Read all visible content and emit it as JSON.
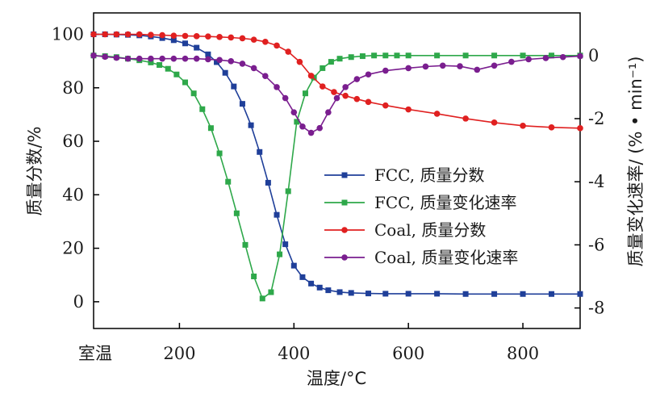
{
  "chart_data": {
    "type": "line",
    "xlabel": "温度/°C",
    "ylabel_left": "质量分数/%",
    "ylabel_right": "质量变化速率/ (% • min⁻¹)",
    "xlim": [
      50,
      900
    ],
    "ylim_left": [
      -10,
      108
    ],
    "ylim_right": [
      -8.65,
      1.35
    ],
    "x_ticks": [
      {
        "value": 50,
        "label": "室温"
      },
      {
        "value": 200,
        "label": "200"
      },
      {
        "value": 400,
        "label": "400"
      },
      {
        "value": 600,
        "label": "600"
      },
      {
        "value": 800,
        "label": "800"
      }
    ],
    "y_left_ticks": [
      0,
      20,
      40,
      60,
      80,
      100
    ],
    "y_right_ticks": [
      -8,
      -6,
      -4,
      -2,
      0
    ],
    "grid": false,
    "legend_position": "center-right",
    "series": [
      {
        "name": "FCC, 质量分数",
        "axis": "left",
        "color": "#1f3f99",
        "marker": "square",
        "x": [
          50,
          70,
          90,
          110,
          130,
          150,
          170,
          190,
          210,
          230,
          250,
          265,
          280,
          295,
          310,
          325,
          340,
          355,
          370,
          385,
          400,
          415,
          430,
          445,
          460,
          480,
          500,
          530,
          560,
          600,
          650,
          700,
          750,
          800,
          850,
          900
        ],
        "y": [
          100,
          100,
          99.9,
          99.8,
          99.6,
          99.2,
          98.6,
          97.8,
          96.6,
          95,
          92.5,
          89.6,
          85.6,
          80.5,
          74,
          66,
          56,
          44.5,
          32.5,
          21.5,
          13.5,
          9.2,
          6.8,
          5.3,
          4.3,
          3.6,
          3.3,
          3.1,
          3,
          3,
          3,
          2.9,
          2.9,
          2.9,
          2.9,
          2.9
        ]
      },
      {
        "name": "FCC, 质量变化速率",
        "axis": "right",
        "color": "#2ea84a",
        "marker": "square",
        "x": [
          50,
          70,
          90,
          110,
          130,
          150,
          165,
          180,
          195,
          210,
          225,
          240,
          255,
          270,
          285,
          300,
          315,
          330,
          345,
          360,
          375,
          390,
          405,
          420,
          435,
          450,
          465,
          480,
          500,
          520,
          540,
          560,
          580,
          600,
          650,
          700,
          750,
          800,
          850,
          900
        ],
        "y": [
          0,
          -0.02,
          -0.05,
          -0.1,
          -0.15,
          -0.22,
          -0.3,
          -0.42,
          -0.6,
          -0.85,
          -1.2,
          -1.7,
          -2.3,
          -3.1,
          -4,
          -5,
          -6,
          -7,
          -7.7,
          -7.5,
          -6.3,
          -4.3,
          -2.1,
          -1.2,
          -0.7,
          -0.4,
          -0.2,
          -0.1,
          -0.05,
          -0.02,
          0,
          0,
          0,
          0,
          0,
          0,
          0,
          0,
          0,
          0
        ]
      },
      {
        "name": "Coal, 质量分数",
        "axis": "left",
        "color": "#e02020",
        "marker": "circle",
        "x": [
          50,
          70,
          90,
          110,
          130,
          150,
          170,
          190,
          210,
          230,
          250,
          270,
          290,
          310,
          330,
          350,
          370,
          390,
          410,
          430,
          450,
          470,
          490,
          510,
          530,
          560,
          600,
          650,
          700,
          750,
          800,
          850,
          900
        ],
        "y": [
          100,
          100,
          100,
          100,
          100,
          99.8,
          99.7,
          99.5,
          99.4,
          99.3,
          99.2,
          99,
          98.8,
          98.5,
          98,
          97.2,
          95.8,
          93.5,
          89.7,
          84.5,
          80.5,
          78.4,
          77,
          75.8,
          74.7,
          73.4,
          71.9,
          70.3,
          68.5,
          67,
          65.8,
          65.2,
          64.9
        ]
      },
      {
        "name": "Coal, 质量变化速率",
        "axis": "right",
        "color": "#7a1e8f",
        "marker": "circle",
        "x": [
          50,
          70,
          90,
          110,
          130,
          150,
          170,
          190,
          210,
          230,
          250,
          270,
          290,
          310,
          330,
          350,
          370,
          385,
          400,
          415,
          430,
          445,
          460,
          475,
          490,
          510,
          530,
          560,
          600,
          630,
          660,
          690,
          720,
          750,
          780,
          810,
          840,
          870,
          900
        ],
        "y": [
          0,
          -0.04,
          -0.07,
          -0.1,
          -0.1,
          -0.1,
          -0.1,
          -0.1,
          -0.1,
          -0.1,
          -0.12,
          -0.14,
          -0.18,
          -0.26,
          -0.4,
          -0.65,
          -1,
          -1.35,
          -1.8,
          -2.25,
          -2.45,
          -2.3,
          -1.8,
          -1.35,
          -1.0,
          -0.75,
          -0.6,
          -0.48,
          -0.4,
          -0.35,
          -0.32,
          -0.34,
          -0.45,
          -0.32,
          -0.2,
          -0.12,
          -0.08,
          -0.05,
          -0.02
        ]
      }
    ]
  }
}
